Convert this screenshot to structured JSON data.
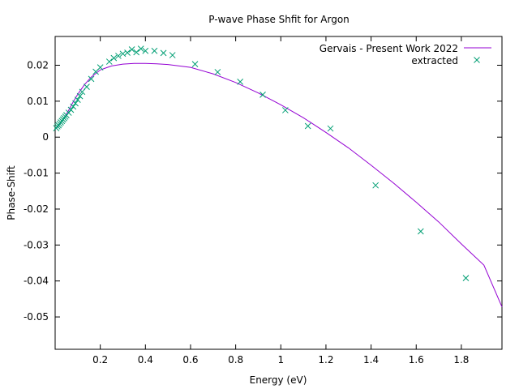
{
  "chart_data": {
    "type": "line",
    "title": "P-wave Phase Shfit for Argon",
    "xlabel": "Energy (eV)",
    "ylabel": "Phase-Shift",
    "xlim": [
      0.0,
      1.98
    ],
    "ylim": [
      -0.059,
      0.028
    ],
    "xticks": [
      0.2,
      0.4,
      0.6,
      0.8,
      1.0,
      1.2,
      1.4,
      1.6,
      1.8
    ],
    "xtick_labels": [
      "0.2",
      "0.4",
      "0.6",
      "0.8",
      "1",
      "1.2",
      "1.4",
      "1.6",
      "1.8"
    ],
    "yticks": [
      0.02,
      0.01,
      0.0,
      -0.01,
      -0.02,
      -0.03,
      -0.04,
      -0.05
    ],
    "ytick_labels": [
      "0.02",
      "0.01",
      "0",
      "-0.01",
      "-0.02",
      "-0.03",
      "-0.04",
      "-0.05"
    ],
    "grid": false,
    "legend_position": "top-right",
    "series": [
      {
        "name": "Gervais - Present Work 2022",
        "style": "line",
        "color": "#9400d3",
        "x": [
          0.005,
          0.02,
          0.04,
          0.06,
          0.08,
          0.1,
          0.13,
          0.16,
          0.2,
          0.25,
          0.3,
          0.35,
          0.4,
          0.45,
          0.5,
          0.55,
          0.6,
          0.7,
          0.8,
          0.9,
          1.0,
          1.1,
          1.2,
          1.3,
          1.4,
          1.5,
          1.6,
          1.7,
          1.8,
          1.9,
          1.98
        ],
        "y": [
          0.0024,
          0.0035,
          0.0053,
          0.0075,
          0.0098,
          0.0119,
          0.0146,
          0.0167,
          0.0187,
          0.0198,
          0.0203,
          0.0205,
          0.0205,
          0.0204,
          0.0202,
          0.0198,
          0.0194,
          0.0176,
          0.0152,
          0.0123,
          0.009,
          0.0054,
          0.0013,
          -0.003,
          -0.0078,
          -0.0128,
          -0.0181,
          -0.0236,
          -0.0297,
          -0.0356,
          -0.0472
        ]
      },
      {
        "name": "extracted",
        "style": "points",
        "marker": "x",
        "color": "#009e73",
        "x": [
          0.005,
          0.01,
          0.015,
          0.02,
          0.025,
          0.03,
          0.035,
          0.04,
          0.045,
          0.05,
          0.06,
          0.07,
          0.08,
          0.09,
          0.1,
          0.11,
          0.12,
          0.14,
          0.16,
          0.18,
          0.2,
          0.24,
          0.26,
          0.28,
          0.3,
          0.32,
          0.34,
          0.36,
          0.38,
          0.4,
          0.44,
          0.48,
          0.52,
          0.62,
          0.72,
          0.82,
          0.92,
          1.02,
          1.12,
          1.22,
          1.42,
          1.62,
          1.82
        ],
        "y": [
          0.0025,
          0.003,
          0.0033,
          0.0037,
          0.0041,
          0.0045,
          0.0049,
          0.0053,
          0.0057,
          0.0061,
          0.0068,
          0.0076,
          0.0085,
          0.0094,
          0.0104,
          0.0114,
          0.0126,
          0.014,
          0.0162,
          0.0182,
          0.0194,
          0.021,
          0.022,
          0.0226,
          0.0232,
          0.0235,
          0.0244,
          0.0236,
          0.0246,
          0.024,
          0.024,
          0.0234,
          0.0228,
          0.0203,
          0.0181,
          0.0154,
          0.0118,
          0.0075,
          0.0031,
          0.0024,
          -0.0134,
          -0.0262,
          -0.0392
        ]
      }
    ]
  }
}
